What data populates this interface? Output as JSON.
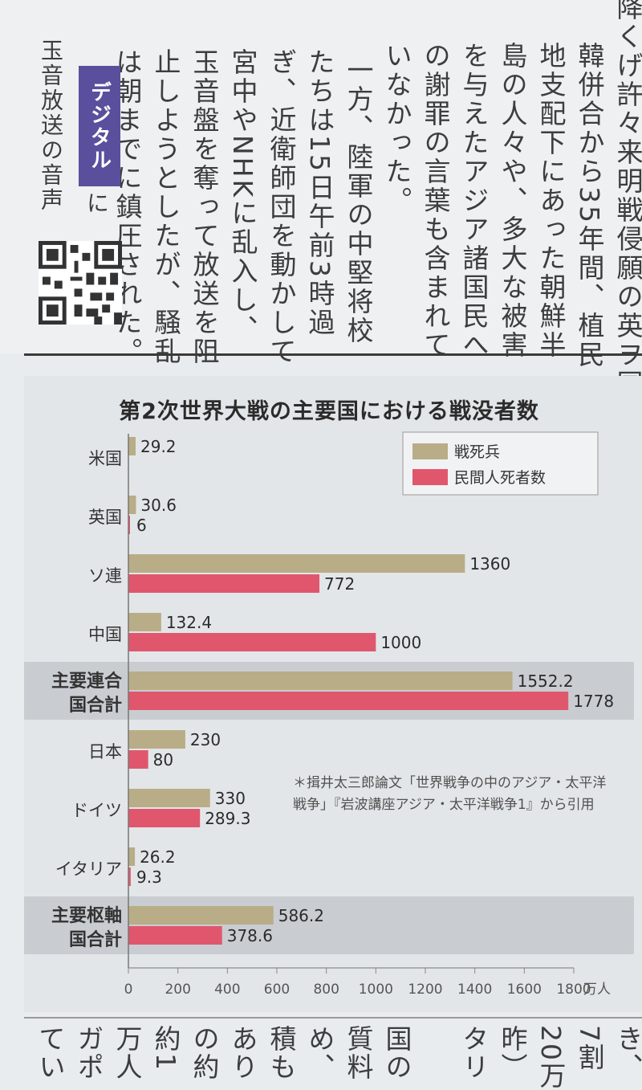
{
  "article_top": {
    "columns": [
      "降くげ許々来明戦侵願の英ヲ国皇",
      "韓併合から35年間、植民",
      "地支配下にあった朝鮮半",
      "島の人々や、多大な被害",
      "を与えたアジア諸国民へ",
      "の謝罪の言葉も含まれて",
      "いなかった。",
      "一方、陸軍の中堅将校",
      "たちは15日午前3時過",
      "ぎ、近衛師団を動かして",
      "宮中やNHKに乱入し、",
      "玉音盤を奪って放送を阻",
      "止しようとしたが、騒乱",
      "は朝までに鎮圧された。"
    ],
    "digital_badge": "デジタル",
    "digital_suffix": "に",
    "digital_caption": "玉音放送の音声"
  },
  "chart_data": {
    "type": "bar",
    "title": "第2次世界大戦の主要国における戦没者数",
    "unit": "万人",
    "categories": [
      "米国",
      "英国",
      "ソ連",
      "中国",
      "主要連合国合計",
      "日本",
      "ドイツ",
      "イタリア",
      "主要枢軸国合計"
    ],
    "category_display": [
      [
        "米国"
      ],
      [
        "英国"
      ],
      [
        "ソ連"
      ],
      [
        "中国"
      ],
      [
        "主要連合",
        "国合計"
      ],
      [
        "日本"
      ],
      [
        "ドイツ"
      ],
      [
        "イタリア"
      ],
      [
        "主要枢軸",
        "国合計"
      ]
    ],
    "highlighted": [
      "主要連合国合計",
      "主要枢軸国合計"
    ],
    "series": [
      {
        "name": "戦死兵",
        "color": "#b9ad87",
        "values": [
          29.2,
          30.6,
          1360,
          132.4,
          1552.2,
          230,
          330,
          26.2,
          586.2
        ],
        "labels": [
          "29.2",
          "30.6",
          "1360",
          "132.4",
          "1552.2",
          "230",
          "330",
          "26.2",
          "586.2"
        ]
      },
      {
        "name": "民間人死者数",
        "color": "#e0576d",
        "values": [
          null,
          6,
          772,
          1000,
          1778,
          80,
          289.3,
          9.3,
          378.6
        ],
        "labels": [
          "",
          "6",
          "772",
          "1000",
          "1778",
          "80",
          "289.3",
          "9.3",
          "378.6"
        ]
      }
    ],
    "xlim": [
      0,
      1800
    ],
    "xticks": [
      0,
      200,
      400,
      600,
      800,
      1000,
      1200,
      1400,
      1600,
      1800
    ],
    "xtick_labels": [
      "0",
      "200",
      "400",
      "600",
      "800",
      "1000",
      "1200",
      "1400",
      "1600",
      "1800"
    ],
    "legend_position": "top-right",
    "note": "＊揖井太三郎論文「世界戦争の中のアジア・太平洋戦争」『岩波講座アジア・太平洋戦争1』から引用"
  },
  "article_bottom": {
    "columns": [
      "き、",
      "7割",
      "20万",
      "昨）",
      "タリ",
      "",
      "国の",
      "質料",
      "め、",
      "積も",
      "あり",
      "の約",
      "約1",
      "万人",
      "ガポ",
      "てい"
    ]
  }
}
